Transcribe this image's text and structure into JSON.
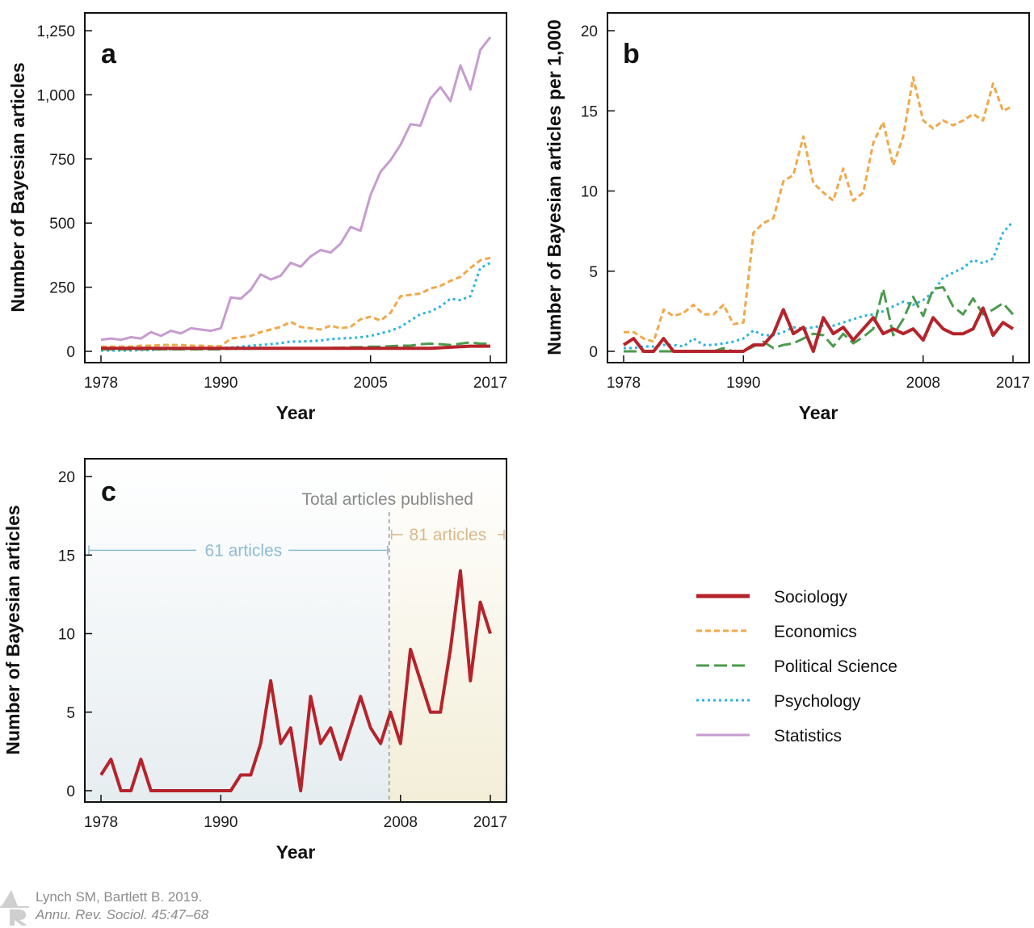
{
  "chart_data": [
    {
      "id": "a",
      "panel_label": "a",
      "type": "line",
      "xlabel": "Year",
      "ylabel": "Number of Bayesian articles",
      "xlim": [
        1978,
        2017
      ],
      "ylim": [
        0,
        1250
      ],
      "xticks": [
        1978,
        1990,
        2005,
        2017
      ],
      "yticks": [
        0,
        250,
        500,
        750,
        1000,
        1250
      ],
      "ytick_labels": [
        "0",
        "250",
        "500",
        "750",
        "1,000",
        "1,250"
      ],
      "x": [
        1978,
        1979,
        1980,
        1981,
        1982,
        1983,
        1984,
        1985,
        1986,
        1987,
        1988,
        1989,
        1990,
        1991,
        1992,
        1993,
        1994,
        1995,
        1996,
        1997,
        1998,
        1999,
        2000,
        2001,
        2002,
        2003,
        2004,
        2005,
        2006,
        2007,
        2008,
        2009,
        2010,
        2011,
        2012,
        2013,
        2014,
        2015,
        2016,
        2017
      ],
      "series": [
        {
          "name": "Statistics",
          "style": "statistics",
          "values": [
            45,
            50,
            45,
            55,
            50,
            75,
            60,
            80,
            70,
            90,
            85,
            80,
            90,
            210,
            205,
            240,
            300,
            280,
            295,
            345,
            330,
            370,
            395,
            385,
            420,
            485,
            470,
            610,
            700,
            745,
            805,
            885,
            880,
            985,
            1030,
            975,
            1115,
            1020,
            1175,
            1225
          ]
        },
        {
          "name": "Economics",
          "style": "economics",
          "values": [
            18,
            18,
            18,
            18,
            22,
            22,
            25,
            25,
            25,
            22,
            22,
            20,
            20,
            50,
            55,
            60,
            75,
            85,
            95,
            115,
            95,
            90,
            85,
            100,
            90,
            95,
            125,
            135,
            120,
            150,
            215,
            220,
            225,
            245,
            255,
            275,
            290,
            325,
            355,
            365
          ]
        },
        {
          "name": "Psychology",
          "style": "psychology",
          "values": [
            3,
            3,
            3,
            3,
            5,
            5,
            8,
            8,
            8,
            10,
            10,
            10,
            12,
            15,
            18,
            22,
            25,
            28,
            32,
            38,
            38,
            40,
            42,
            48,
            50,
            52,
            55,
            60,
            70,
            80,
            95,
            120,
            145,
            155,
            175,
            205,
            200,
            215,
            325,
            345
          ]
        },
        {
          "name": "Political Science",
          "style": "politics",
          "values": [
            8,
            8,
            8,
            8,
            8,
            8,
            8,
            8,
            8,
            8,
            8,
            8,
            8,
            10,
            10,
            10,
            12,
            12,
            12,
            12,
            12,
            12,
            12,
            14,
            14,
            16,
            16,
            18,
            18,
            20,
            22,
            22,
            28,
            30,
            28,
            25,
            30,
            35,
            30,
            30
          ]
        },
        {
          "name": "Sociology",
          "style": "sociology",
          "values": [
            12,
            12,
            12,
            12,
            12,
            12,
            12,
            12,
            12,
            12,
            12,
            12,
            12,
            12,
            12,
            12,
            12,
            12,
            12,
            12,
            12,
            12,
            12,
            12,
            12,
            12,
            12,
            12,
            12,
            12,
            12,
            12,
            12,
            12,
            14,
            16,
            18,
            20,
            20,
            20
          ]
        }
      ]
    },
    {
      "id": "b",
      "panel_label": "b",
      "type": "line",
      "xlabel": "Year",
      "ylabel": "Number of Bayesian articles per 1,000",
      "xlim": [
        1978,
        2017
      ],
      "ylim": [
        0,
        20
      ],
      "xticks": [
        1978,
        1990,
        2008,
        2017
      ],
      "yticks": [
        0,
        5,
        10,
        15,
        20
      ],
      "ytick_labels": [
        "0",
        "5",
        "10",
        "15",
        "20"
      ],
      "x": [
        1978,
        1979,
        1980,
        1981,
        1982,
        1983,
        1984,
        1985,
        1986,
        1987,
        1988,
        1989,
        1990,
        1991,
        1992,
        1993,
        1994,
        1995,
        1996,
        1997,
        1998,
        1999,
        2000,
        2001,
        2002,
        2003,
        2004,
        2005,
        2006,
        2007,
        2008,
        2009,
        2010,
        2011,
        2012,
        2013,
        2014,
        2015,
        2016,
        2017
      ],
      "series": [
        {
          "name": "Economics",
          "style": "economics",
          "values": [
            1.2,
            1.2,
            0.8,
            0.6,
            2.6,
            2.2,
            2.4,
            2.9,
            2.3,
            2.3,
            2.9,
            1.7,
            1.8,
            7.4,
            8.0,
            8.3,
            10.6,
            11.0,
            13.4,
            10.5,
            9.9,
            9.4,
            11.4,
            9.4,
            9.9,
            13.0,
            14.3,
            11.6,
            13.4,
            17.1,
            14.4,
            13.9,
            14.4,
            14.1,
            14.4,
            14.8,
            14.4,
            16.7,
            15.0,
            15.3
          ]
        },
        {
          "name": "Psychology",
          "style": "psychology",
          "values": [
            0.2,
            0.2,
            0.3,
            0.3,
            0.4,
            0.4,
            0.3,
            0.8,
            0.4,
            0.4,
            0.5,
            0.6,
            0.8,
            1.3,
            1.0,
            1.0,
            1.2,
            1.5,
            1.4,
            1.5,
            1.6,
            1.6,
            1.8,
            2.0,
            2.2,
            2.3,
            2.5,
            2.8,
            3.1,
            2.9,
            3.2,
            3.7,
            4.6,
            4.9,
            5.2,
            5.7,
            5.5,
            5.8,
            7.4,
            8.1
          ]
        },
        {
          "name": "Political Science",
          "style": "politics",
          "values": [
            0,
            0,
            0,
            0,
            0,
            0,
            0,
            0,
            0,
            0,
            0.2,
            0,
            0,
            0.3,
            0.6,
            0.2,
            0.4,
            0.5,
            0.8,
            1.1,
            1.0,
            0.3,
            1.1,
            0.5,
            0.9,
            1.4,
            3.9,
            1.0,
            2.0,
            3.4,
            2.2,
            3.9,
            4.0,
            2.8,
            2.3,
            3.3,
            2.3,
            2.6,
            3.0,
            2.3
          ]
        },
        {
          "name": "Sociology",
          "style": "sociology",
          "values": [
            0.4,
            0.8,
            0,
            0,
            0.8,
            0,
            0,
            0,
            0,
            0,
            0,
            0,
            0,
            0.4,
            0.4,
            1.1,
            2.6,
            1.1,
            1.5,
            0,
            2.1,
            1.1,
            1.5,
            0.7,
            1.4,
            2.1,
            1.1,
            1.4,
            1.1,
            1.4,
            0.7,
            2.1,
            1.4,
            1.1,
            1.1,
            1.4,
            2.7,
            1.0,
            1.8,
            1.4
          ]
        }
      ]
    },
    {
      "id": "c",
      "panel_label": "c",
      "type": "line",
      "xlabel": "Year",
      "ylabel": "Number of Bayesian articles",
      "xlim": [
        1978,
        2017
      ],
      "ylim": [
        0,
        20
      ],
      "xticks": [
        1978,
        1990,
        2008,
        2017
      ],
      "yticks": [
        0,
        5,
        10,
        15,
        20
      ],
      "ytick_labels": [
        "0",
        "5",
        "10",
        "15",
        "20"
      ],
      "x": [
        1978,
        1979,
        1980,
        1981,
        1982,
        1983,
        1984,
        1985,
        1986,
        1987,
        1988,
        1989,
        1990,
        1991,
        1992,
        1993,
        1994,
        1995,
        1996,
        1997,
        1998,
        1999,
        2000,
        2001,
        2002,
        2003,
        2004,
        2005,
        2006,
        2007,
        2008,
        2009,
        2010,
        2011,
        2012,
        2013,
        2014,
        2015,
        2016,
        2017
      ],
      "series": [
        {
          "name": "Sociology",
          "style": "sociology",
          "values": [
            1,
            2,
            0,
            0,
            2,
            0,
            0,
            0,
            0,
            0,
            0,
            0,
            0,
            0,
            1,
            1,
            3,
            7,
            3,
            4,
            0,
            6,
            3,
            4,
            2,
            4,
            6,
            4,
            3,
            5,
            3,
            9,
            7,
            5,
            5,
            9,
            14,
            7,
            12,
            10
          ]
        }
      ],
      "annotations": {
        "title": "Total articles published",
        "left_span": "61 articles",
        "right_span": "81 articles",
        "split_year": 2008
      }
    }
  ],
  "legend": [
    {
      "label": "Sociology",
      "style": "sociology"
    },
    {
      "label": "Economics",
      "style": "economics"
    },
    {
      "label": "Political Science",
      "style": "politics"
    },
    {
      "label": "Psychology",
      "style": "psychology"
    },
    {
      "label": "Statistics",
      "style": "statistics"
    }
  ],
  "colors": {
    "sociology": "#b5232b",
    "economics": "#f0a84a",
    "politics": "#4c9a4e",
    "psychology": "#2bb4d8",
    "statistics": "#c79bd0",
    "annot_left": "#8fbcd3",
    "annot_right": "#d9b98a",
    "annot_title": "#888888"
  },
  "credit": {
    "line1": "Lynch SM, Bartlett B. 2019.",
    "line2": "Annu. Rev. Sociol. 45:47–68"
  }
}
